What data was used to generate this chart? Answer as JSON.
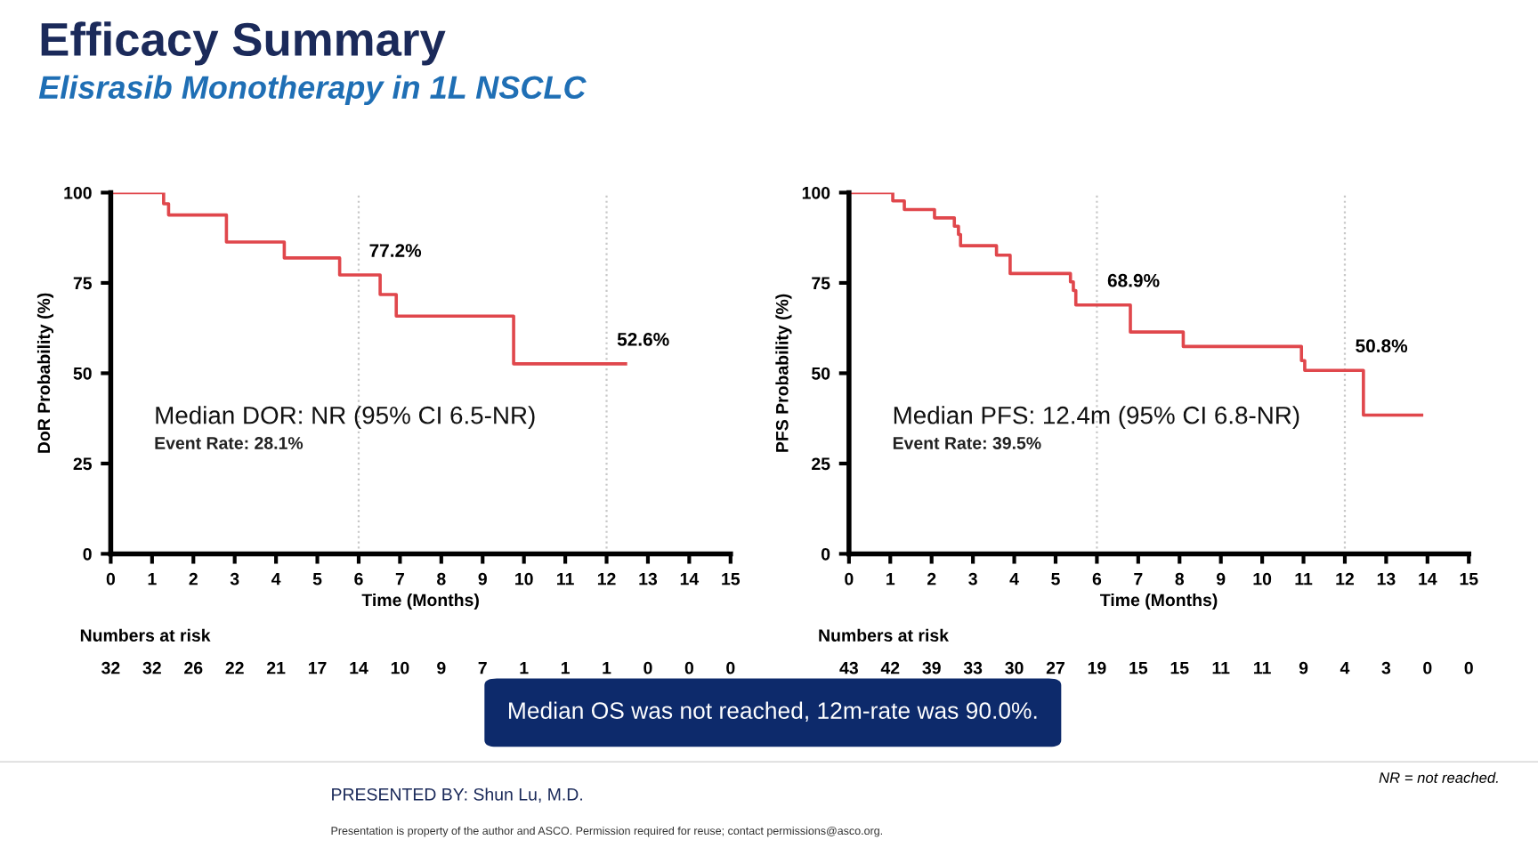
{
  "chart_data": [
    {
      "type": "step",
      "title": "Efficacy Summary",
      "subtitle": "Elisrasib Monotherapy in 1L NSCLC",
      "xlabel": "Time (Months)",
      "ylabel": "DoR Probability (%)",
      "x": [
        0,
        1.28,
        1.4,
        2.8,
        4.2,
        5.54,
        6.52,
        6.91,
        9.75,
        12.46
      ],
      "series": [
        {
          "color": "#e0474c",
          "values": [
            100,
            96.9,
            93.8,
            86.3,
            81.9,
            77.2,
            71.8,
            65.8,
            52.6,
            52.6
          ]
        }
      ],
      "xlim": [
        0,
        15
      ],
      "xticks": [
        0,
        1,
        2,
        3,
        4,
        5,
        6,
        7,
        8,
        9,
        10,
        11,
        12,
        13,
        14,
        15
      ],
      "ylim": [
        0,
        100
      ],
      "yticks": [
        0,
        25,
        50,
        75,
        100
      ],
      "grid": false,
      "legend": false,
      "ref_lines": [
        {
          "axis": "x",
          "value": 6,
          "color": "#c8c8c8",
          "line_style": "dotted"
        },
        {
          "axis": "x",
          "value": 12,
          "color": "#c8c8c8",
          "line_style": "dotted"
        }
      ],
      "annotations": [
        "77.2%",
        "52.6%",
        "Median DOR: NR (95% CI 6.5-NR)",
        "Event Rate: 28.1%",
        "Numbers at risk",
        "32",
        "32",
        "26",
        "22",
        "21",
        "17",
        "14",
        "10",
        "9",
        "7",
        "1",
        "1",
        "1",
        "0",
        "0",
        "0"
      ]
    },
    {
      "type": "step",
      "xlabel": "Time (Months)",
      "ylabel": "PFS Probability (%)",
      "x": [
        0,
        1.06,
        1.34,
        2.07,
        2.55,
        2.65,
        2.7,
        3.57,
        3.9,
        5.36,
        5.43,
        5.49,
        6.81,
        8.09,
        10.95,
        11.03,
        12.45,
        13.86
      ],
      "series": [
        {
          "color": "#e0474c",
          "values": [
            100,
            97.7,
            95.3,
            93.0,
            90.7,
            88.4,
            85.3,
            82.7,
            77.6,
            75.3,
            72.9,
            68.9,
            61.4,
            57.4,
            53.5,
            50.8,
            38.4,
            38.4
          ]
        }
      ],
      "xlim": [
        0,
        15
      ],
      "xticks": [
        0,
        1,
        2,
        3,
        4,
        5,
        6,
        7,
        8,
        9,
        10,
        11,
        12,
        13,
        14,
        15
      ],
      "ylim": [
        0,
        100
      ],
      "yticks": [
        0,
        25,
        50,
        75,
        100
      ],
      "grid": false,
      "legend": false,
      "ref_lines": [
        {
          "axis": "x",
          "value": 6,
          "color": "#c8c8c8",
          "line_style": "dotted"
        },
        {
          "axis": "x",
          "value": 12,
          "color": "#c8c8c8",
          "line_style": "dotted"
        }
      ],
      "annotations": [
        "68.9%",
        "50.8%",
        "Median PFS: 12.4m (95% CI 6.8-NR)",
        "Event Rate: 39.5%",
        "Numbers at risk",
        "43",
        "42",
        "39",
        "33",
        "30",
        "27",
        "19",
        "15",
        "15",
        "11",
        "11",
        "9",
        "4",
        "3",
        "0",
        "0",
        "Median OS was not reached, 12m-rate was 90.0%.",
        "NR = not reached.",
        "PRESENTED BY: Shun Lu, M.D.",
        "Presentation is property of the author and ASCO. Permission required for reuse; contact permissions@asco.org."
      ]
    }
  ]
}
